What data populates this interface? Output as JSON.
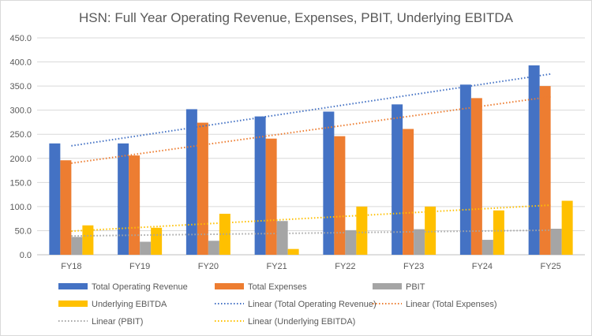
{
  "chart_data": {
    "type": "bar",
    "title": "HSN: Full Year Operating Revenue, Expenses, PBIT, Underlying EBITDA",
    "categories": [
      "FY18",
      "FY19",
      "FY20",
      "FY21",
      "FY22",
      "FY23",
      "FY24",
      "FY25"
    ],
    "ylim": [
      0,
      450
    ],
    "yticks": [
      "0.0",
      "50.0",
      "100.0",
      "150.0",
      "200.0",
      "250.0",
      "300.0",
      "350.0",
      "400.0",
      "450.0"
    ],
    "grid": true,
    "legend_position": "bottom",
    "series": [
      {
        "name": "Total Operating Revenue",
        "color": "#4472C4",
        "values": [
          231,
          231,
          302,
          287,
          297,
          312,
          353,
          393
        ]
      },
      {
        "name": "Total Expenses",
        "color": "#ED7D31",
        "values": [
          196,
          206,
          274,
          241,
          246,
          261,
          325,
          350
        ]
      },
      {
        "name": "PBIT",
        "color": "#A5A5A5",
        "values": [
          37,
          27,
          29,
          70,
          51,
          53,
          31,
          54
        ]
      },
      {
        "name": "Underlying EBITDA",
        "color": "#FFC000",
        "values": [
          61,
          56,
          85,
          12,
          100,
          100,
          92,
          112
        ]
      }
    ],
    "trendlines": [
      {
        "name": "Linear (Total Operating Revenue)",
        "color": "#4472C4",
        "start": 226,
        "end": 375
      },
      {
        "name": "Linear (Total Expenses)",
        "color": "#ED7D31",
        "start": 190,
        "end": 328
      },
      {
        "name": "Linear (PBIT)",
        "color": "#A5A5A5",
        "start": 39,
        "end": 51
      },
      {
        "name": "Linear (Underlying EBITDA)",
        "color": "#FFC000",
        "start": 49,
        "end": 103
      }
    ]
  }
}
